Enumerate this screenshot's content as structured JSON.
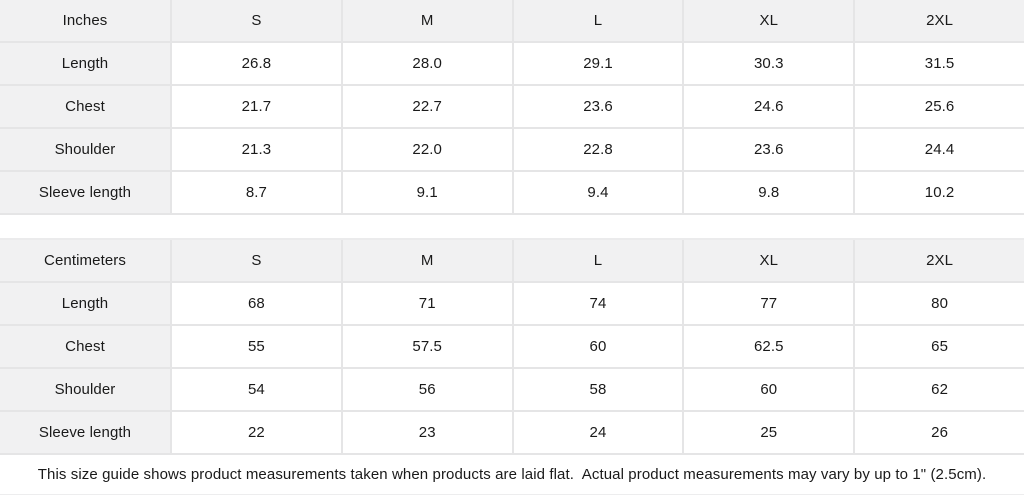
{
  "colors": {
    "background": "#ffffff",
    "header_cell_bg": "#f1f1f2",
    "divider": "#e5e5e6",
    "text": "#1a1a1a"
  },
  "tables": [
    {
      "unit_label": "Inches",
      "sizes": [
        "S",
        "M",
        "L",
        "XL",
        "2XL"
      ],
      "rows": [
        {
          "label": "Length",
          "values": [
            "26.8",
            "28.0",
            "29.1",
            "30.3",
            "31.5"
          ]
        },
        {
          "label": "Chest",
          "values": [
            "21.7",
            "22.7",
            "23.6",
            "24.6",
            "25.6"
          ]
        },
        {
          "label": "Shoulder",
          "values": [
            "21.3",
            "22.0",
            "22.8",
            "23.6",
            "24.4"
          ]
        },
        {
          "label": "Sleeve length",
          "values": [
            "8.7",
            "9.1",
            "9.4",
            "9.8",
            "10.2"
          ]
        }
      ]
    },
    {
      "unit_label": "Centimeters",
      "sizes": [
        "S",
        "M",
        "L",
        "XL",
        "2XL"
      ],
      "rows": [
        {
          "label": "Length",
          "values": [
            "68",
            "71",
            "74",
            "77",
            "80"
          ]
        },
        {
          "label": "Chest",
          "values": [
            "55",
            "57.5",
            "60",
            "62.5",
            "65"
          ]
        },
        {
          "label": "Shoulder",
          "values": [
            "54",
            "56",
            "58",
            "60",
            "62"
          ]
        },
        {
          "label": "Sleeve length",
          "values": [
            "22",
            "23",
            "24",
            "25",
            "26"
          ]
        }
      ]
    }
  ],
  "footer": {
    "note": "This size guide shows product measurements taken when products are laid flat.  Actual product measurements may vary by up to 1\" (2.5cm)."
  }
}
